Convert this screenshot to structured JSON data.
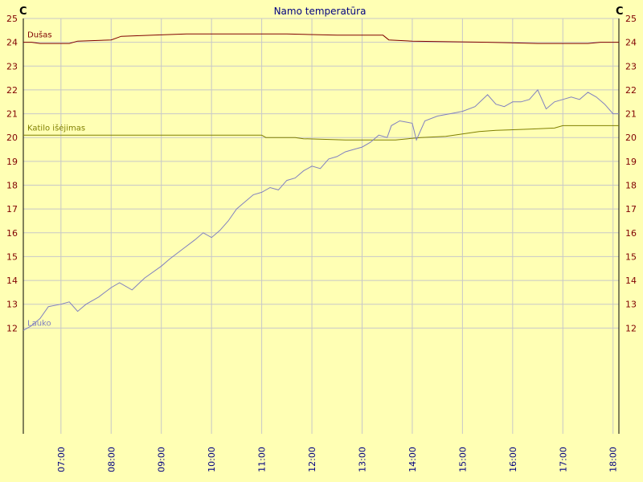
{
  "chart_data": {
    "type": "line",
    "title": "Namo temperatūra",
    "ylabel_left": "C",
    "ylabel_right": "C",
    "ylim": [
      11,
      25
    ],
    "yticks": [
      12,
      13,
      14,
      15,
      16,
      17,
      18,
      19,
      20,
      21,
      22,
      23,
      24,
      25
    ],
    "x_range": [
      "06:15",
      "18:07"
    ],
    "xticks": [
      "07:00",
      "08:00",
      "09:00",
      "10:00",
      "11:00",
      "12:00",
      "13:00",
      "14:00",
      "15:00",
      "16:00",
      "17:00",
      "18:00"
    ],
    "grid": true,
    "colors": {
      "background": "#ffffb4",
      "grid": "#c8c8c8",
      "axis": "#000000",
      "tick_left": "#800000",
      "tick_x": "#000080",
      "title": "#000080"
    },
    "series": [
      {
        "name": "Dušas",
        "color": "#800000",
        "points": [
          [
            "06:15",
            24.0
          ],
          [
            "06:25",
            24.0
          ],
          [
            "06:35",
            23.95
          ],
          [
            "07:10",
            23.95
          ],
          [
            "07:20",
            24.05
          ],
          [
            "08:00",
            24.1
          ],
          [
            "08:12",
            24.25
          ],
          [
            "08:50",
            24.3
          ],
          [
            "09:30",
            24.35
          ],
          [
            "10:30",
            24.35
          ],
          [
            "11:30",
            24.35
          ],
          [
            "12:30",
            24.3
          ],
          [
            "13:25",
            24.3
          ],
          [
            "13:32",
            24.1
          ],
          [
            "14:00",
            24.05
          ],
          [
            "15:30",
            24.0
          ],
          [
            "16:30",
            23.95
          ],
          [
            "17:30",
            23.95
          ],
          [
            "17:45",
            24.0
          ],
          [
            "18:07",
            24.0
          ]
        ]
      },
      {
        "name": "Katilo išėjimas",
        "color": "#808000",
        "points": [
          [
            "06:15",
            20.1
          ],
          [
            "11:00",
            20.1
          ],
          [
            "11:05",
            20.0
          ],
          [
            "11:40",
            20.0
          ],
          [
            "11:50",
            19.95
          ],
          [
            "12:40",
            19.9
          ],
          [
            "13:40",
            19.9
          ],
          [
            "14:10",
            20.0
          ],
          [
            "14:40",
            20.05
          ],
          [
            "15:00",
            20.15
          ],
          [
            "15:20",
            20.25
          ],
          [
            "15:40",
            20.3
          ],
          [
            "16:20",
            20.35
          ],
          [
            "16:50",
            20.4
          ],
          [
            "17:00",
            20.5
          ],
          [
            "17:10",
            20.5
          ],
          [
            "18:07",
            20.5
          ]
        ]
      },
      {
        "name": "Lauko",
        "color": "#8080c0",
        "points": [
          [
            "06:15",
            11.9
          ],
          [
            "06:25",
            12.1
          ],
          [
            "06:35",
            12.4
          ],
          [
            "06:45",
            12.9
          ],
          [
            "07:00",
            13.0
          ],
          [
            "07:10",
            13.1
          ],
          [
            "07:20",
            12.7
          ],
          [
            "07:30",
            13.0
          ],
          [
            "07:45",
            13.3
          ],
          [
            "08:00",
            13.7
          ],
          [
            "08:10",
            13.9
          ],
          [
            "08:25",
            13.6
          ],
          [
            "08:40",
            14.1
          ],
          [
            "09:00",
            14.6
          ],
          [
            "09:10",
            14.9
          ],
          [
            "09:25",
            15.3
          ],
          [
            "09:40",
            15.7
          ],
          [
            "09:50",
            16.0
          ],
          [
            "10:00",
            15.8
          ],
          [
            "10:10",
            16.1
          ],
          [
            "10:20",
            16.5
          ],
          [
            "10:30",
            17.0
          ],
          [
            "10:40",
            17.3
          ],
          [
            "10:50",
            17.6
          ],
          [
            "11:00",
            17.7
          ],
          [
            "11:10",
            17.9
          ],
          [
            "11:20",
            17.8
          ],
          [
            "11:30",
            18.2
          ],
          [
            "11:40",
            18.3
          ],
          [
            "11:50",
            18.6
          ],
          [
            "12:00",
            18.8
          ],
          [
            "12:10",
            18.7
          ],
          [
            "12:20",
            19.1
          ],
          [
            "12:30",
            19.2
          ],
          [
            "12:40",
            19.4
          ],
          [
            "12:50",
            19.5
          ],
          [
            "13:00",
            19.6
          ],
          [
            "13:10",
            19.8
          ],
          [
            "13:20",
            20.1
          ],
          [
            "13:30",
            20.0
          ],
          [
            "13:35",
            20.5
          ],
          [
            "13:45",
            20.7
          ],
          [
            "14:00",
            20.6
          ],
          [
            "14:05",
            19.9
          ],
          [
            "14:15",
            20.7
          ],
          [
            "14:30",
            20.9
          ],
          [
            "14:45",
            21.0
          ],
          [
            "15:00",
            21.1
          ],
          [
            "15:15",
            21.3
          ],
          [
            "15:30",
            21.8
          ],
          [
            "15:40",
            21.4
          ],
          [
            "15:50",
            21.3
          ],
          [
            "16:00",
            21.5
          ],
          [
            "16:10",
            21.5
          ],
          [
            "16:20",
            21.6
          ],
          [
            "16:30",
            22.0
          ],
          [
            "16:40",
            21.2
          ],
          [
            "16:50",
            21.5
          ],
          [
            "17:00",
            21.6
          ],
          [
            "17:10",
            21.7
          ],
          [
            "17:20",
            21.6
          ],
          [
            "17:30",
            21.9
          ],
          [
            "17:40",
            21.7
          ],
          [
            "17:50",
            21.4
          ],
          [
            "18:00",
            21.0
          ],
          [
            "18:07",
            21.0
          ]
        ]
      }
    ]
  }
}
